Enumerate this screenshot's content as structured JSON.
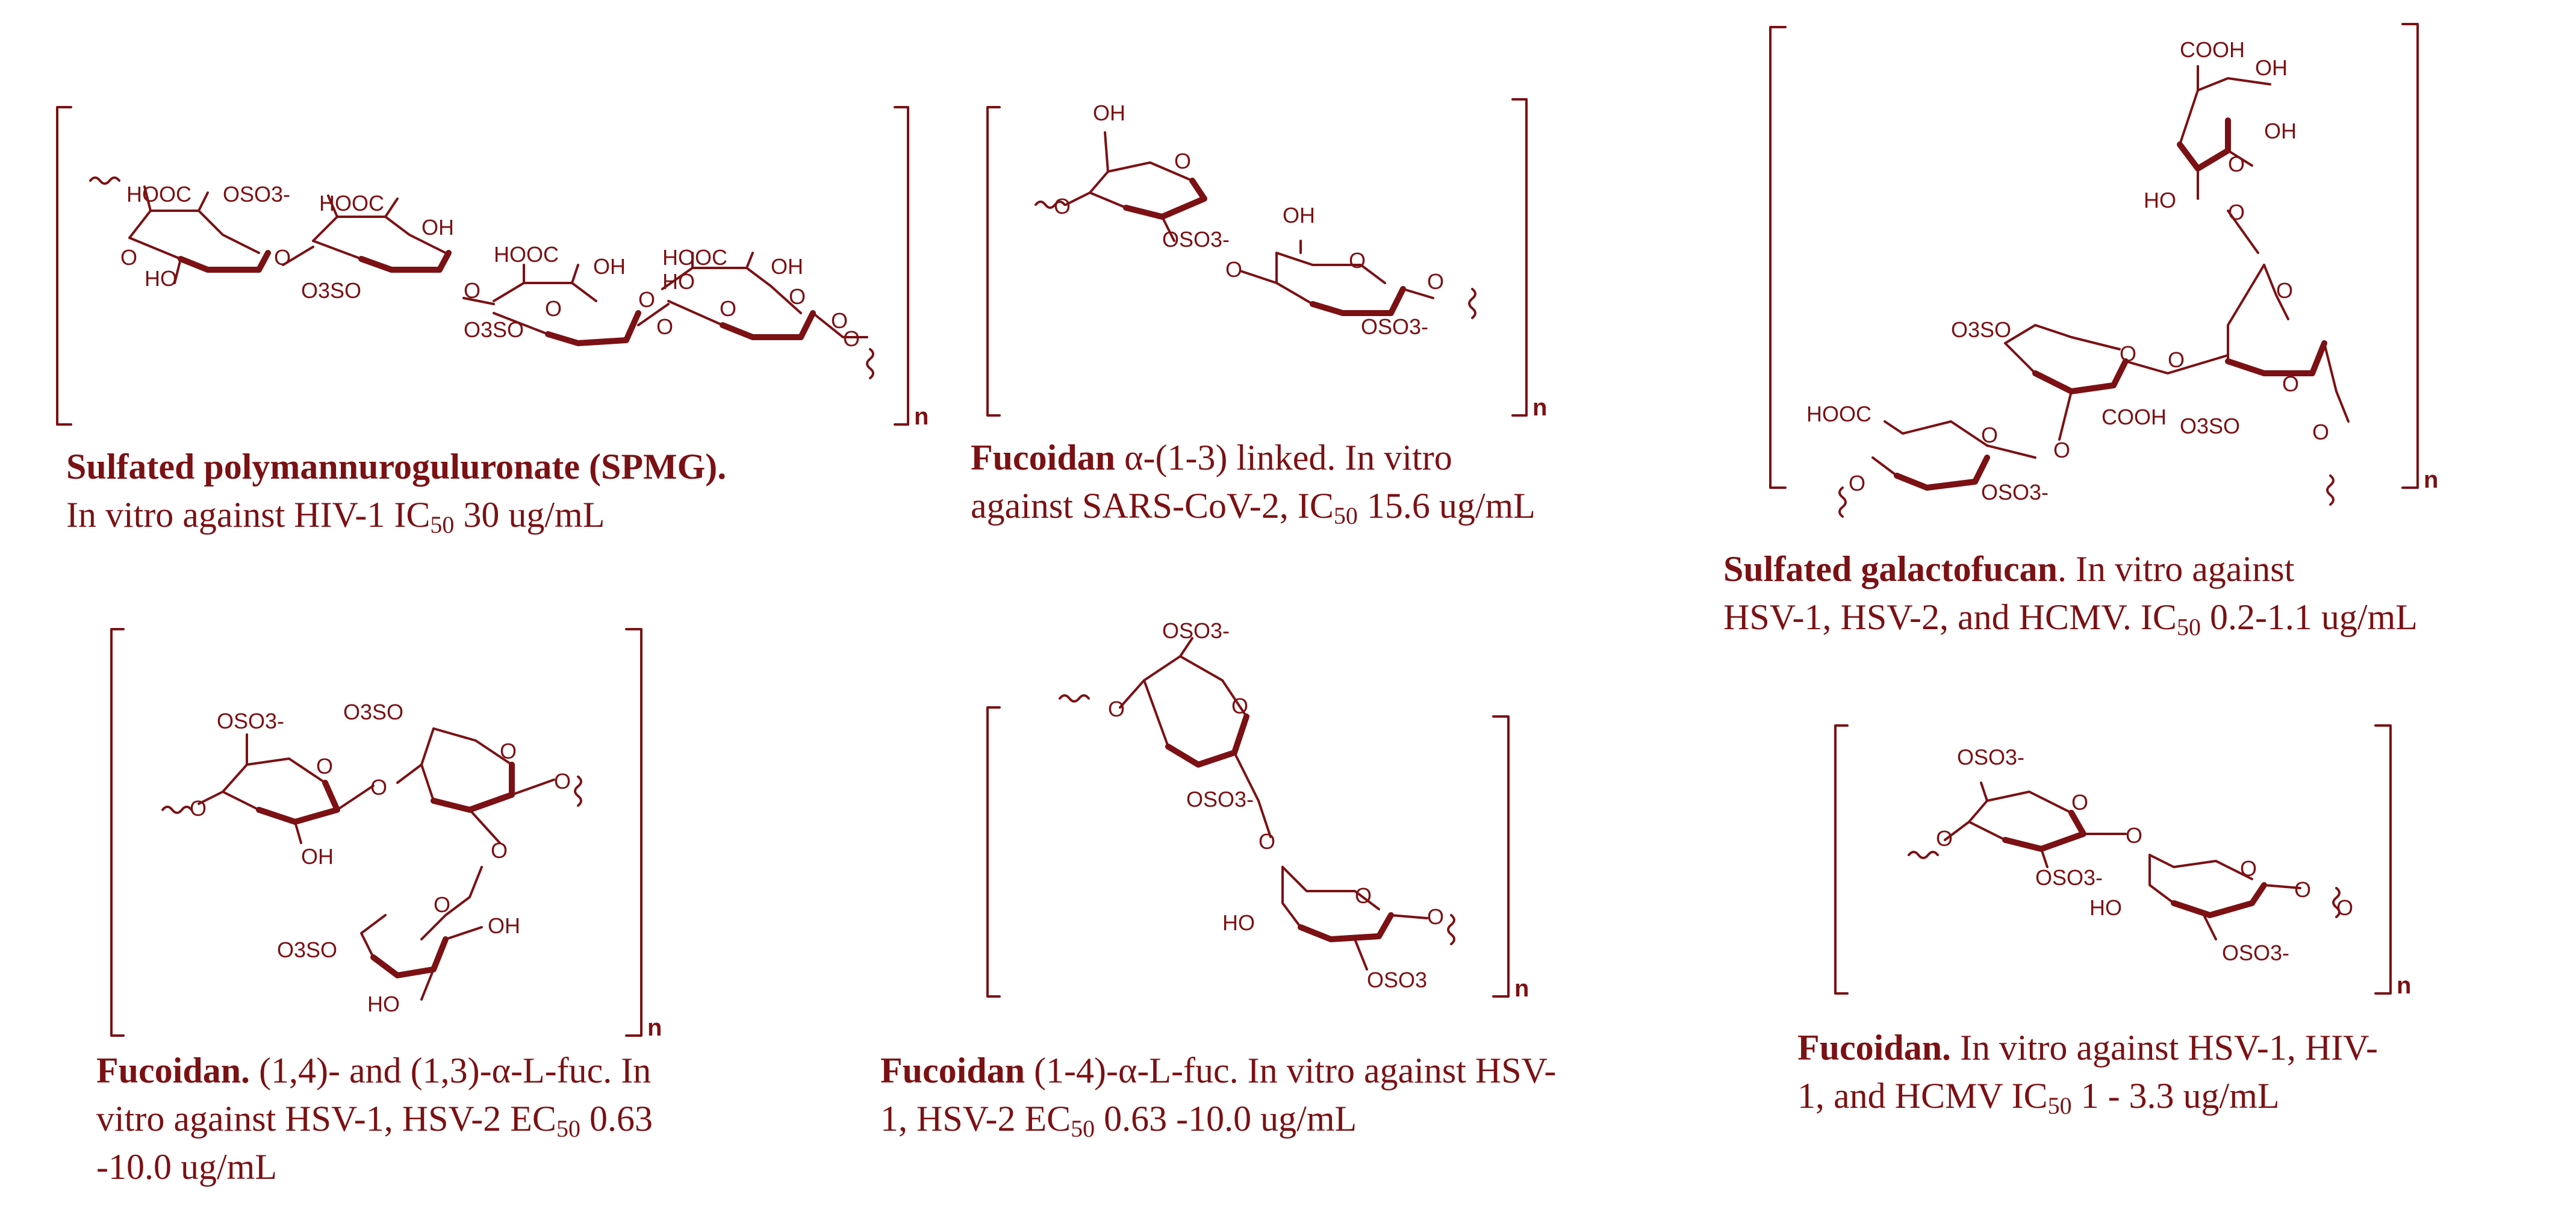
{
  "panels": [
    {
      "name_bold": "Sulfated polymannuroguluronate (SPMG).",
      "line2_pre": "In vitro against HIV-1  IC",
      "line2_sub": "50",
      "line2_post": " 30 ug/mL",
      "repeat": "n",
      "atoms": [
        "HOOC",
        "OSO3-",
        "O",
        "HO",
        "O",
        "HOOC",
        "OH",
        "O",
        "O3SO",
        "O",
        "HOOC",
        "OH",
        "O",
        "O3SO",
        "O",
        "O",
        "HOOC",
        "OH",
        "HO",
        "O",
        "O",
        "O"
      ]
    },
    {
      "name_bold": "Fucoidan",
      "line1_post": " α-(1-3) linked. In vitro",
      "line2_pre": "against SARS-CoV-2,  IC",
      "line2_sub": "50",
      "line2_post": " 15.6 ug/mL",
      "repeat": "n",
      "atoms": [
        "OH",
        "O",
        "O",
        "OSO3-",
        "OH",
        "O",
        "O",
        "O",
        "OSO3-"
      ]
    },
    {
      "name_bold": "Sulfated galactofucan",
      "line1_post": ". In vitro against",
      "line2_pre": "HSV-1, HSV-2, and HCMV. IC",
      "line2_sub": "50",
      "line2_post": " 0.2-1.1 ug/mL",
      "repeat": "n",
      "atoms": [
        "COOH",
        "OH",
        "OH",
        "O",
        "HO",
        "O",
        "O3SO",
        "O",
        "O",
        "O",
        "HOOC",
        "O",
        "COOH",
        "O3SO",
        "O",
        "O",
        "O",
        "O",
        "OSO3-"
      ]
    },
    {
      "name_bold": "Fucoidan.",
      "line1_post": " (1,4)- and (1,3)-α-L-fuc. In",
      "line2_pre": "vitro against HSV-1, HSV-2 EC",
      "line2_sub": "50",
      "line2_post": " 0.63",
      "line3": "-10.0 ug/mL",
      "repeat": "n",
      "atoms": [
        "OSO3-",
        "O3SO",
        "O",
        "O",
        "O",
        "O",
        "O",
        "OH",
        "O",
        "O",
        "O3SO",
        "OH",
        "HO"
      ]
    },
    {
      "name_bold": "Fucoidan",
      "line1_post": " (1-4)-α-L-fuc. In vitro against HSV-",
      "line2_pre": "1, HSV-2  EC",
      "line2_sub": "50",
      "line2_post": " 0.63 -10.0 ug/mL",
      "repeat": "n",
      "atoms": [
        "OSO3-",
        "O",
        "O",
        "OSO3-",
        "O",
        "HO",
        "O",
        "O",
        "OSO3"
      ]
    },
    {
      "name_bold": "Fucoidan.",
      "line1_post": " In vitro against HSV-1, HIV-",
      "line2_pre": "1, and HCMV IC",
      "line2_sub": "50",
      "line2_post": " 1 - 3.3 ug/mL",
      "repeat": "n",
      "atoms": [
        "OSO3-",
        "O",
        "O",
        "OSO3-",
        "O",
        "O",
        "HO",
        "O",
        "O",
        "OSO3-"
      ]
    }
  ],
  "colors": {
    "ink": "#7b1114"
  }
}
